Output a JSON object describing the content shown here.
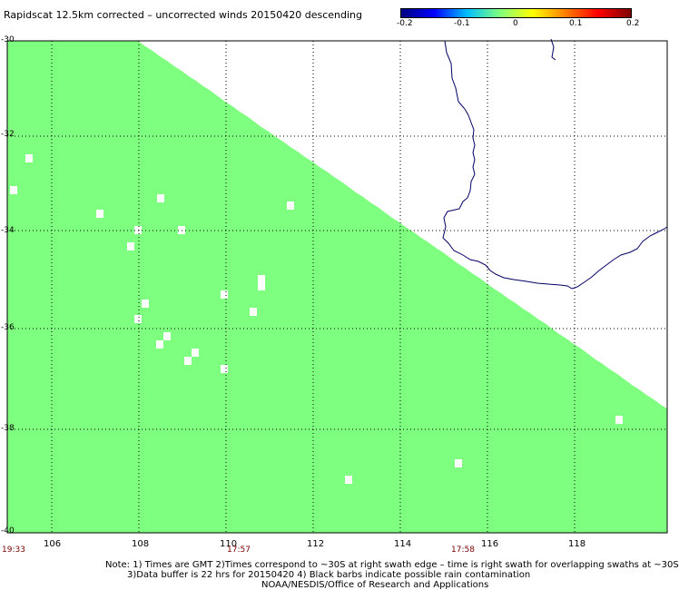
{
  "title": "Rapidscat 12.5km corrected – uncorrected winds 20150420 descending",
  "colorbar": {
    "ticks": [
      "-0.2",
      "-0.1",
      "0",
      "0.1",
      "0.2"
    ],
    "colors": [
      "#00007f",
      "#0000ff",
      "#00bfff",
      "#7fff7f",
      "#ffff00",
      "#ff7f00",
      "#ff0000",
      "#7f0000"
    ]
  },
  "map": {
    "lon_range": [
      105,
      120
    ],
    "lat_range": [
      -40,
      -30
    ],
    "x_ticks": [
      "106",
      "108",
      "110",
      "112",
      "114",
      "116",
      "118"
    ],
    "y_ticks": [
      "-30",
      "-32",
      "-34",
      "-36",
      "-38",
      "-40"
    ],
    "fill_color": "#7fff7f",
    "coast_color": "#000066",
    "grid": "dotted"
  },
  "time_labels": [
    "19:33",
    "17:57",
    "17:58"
  ],
  "notes": [
    "Note: 1) Times are GMT 2)Times correspond to ~30S at right swath edge – time is right swath for overlapping swaths at ~30S",
    "3)Data buffer is 22 hrs for 20150420 4) Black barbs indicate possible rain contamination",
    "NOAA/NESDIS/Office of Research and Applications"
  ]
}
